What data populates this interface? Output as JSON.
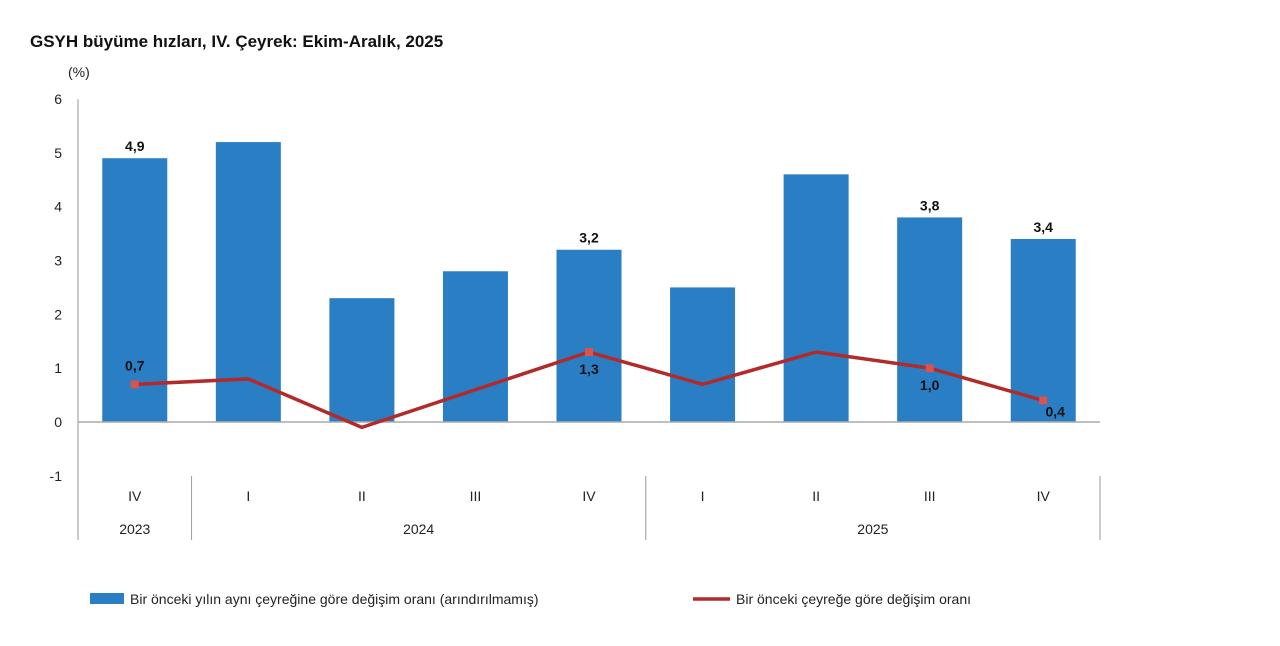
{
  "chart_data": {
    "type": "bar",
    "title": "GSYH büyüme hızları, IV. Çeyrek: Ekim-Aralık, 2025",
    "ylabel": "(%)",
    "ylim": [
      -1,
      6
    ],
    "yticks": [
      "-1",
      "0",
      "1",
      "2",
      "3",
      "4",
      "5",
      "6"
    ],
    "categories": [
      "IV",
      "I",
      "II",
      "III",
      "IV",
      "I",
      "II",
      "III",
      "IV"
    ],
    "year_groups": [
      {
        "label": "2023",
        "count": 1
      },
      {
        "label": "2024",
        "count": 4
      },
      {
        "label": "2025",
        "count": 4
      }
    ],
    "grid": false,
    "legend_position": "bottom",
    "series": [
      {
        "name": "Bir önceki yılın aynı çeyreğine göre değişim oranı (arındırılmamış)",
        "type": "bar",
        "color": "#2a7fc4",
        "values": [
          4.9,
          5.2,
          2.3,
          2.8,
          3.2,
          2.5,
          4.6,
          3.8,
          3.4
        ],
        "labels": [
          "4,9",
          "",
          "",
          "",
          "3,2",
          "",
          "",
          "3,8",
          "3,4"
        ]
      },
      {
        "name": "Bir önceki çeyreğe göre değişim oranı",
        "type": "line",
        "color": "#b22a2a",
        "values": [
          0.7,
          0.8,
          -0.1,
          0.6,
          1.3,
          0.7,
          1.3,
          1.0,
          0.4
        ],
        "labels": [
          "0,7",
          "",
          "",
          "",
          "1,3",
          "",
          "",
          "1,0",
          "0,4"
        ]
      }
    ]
  }
}
